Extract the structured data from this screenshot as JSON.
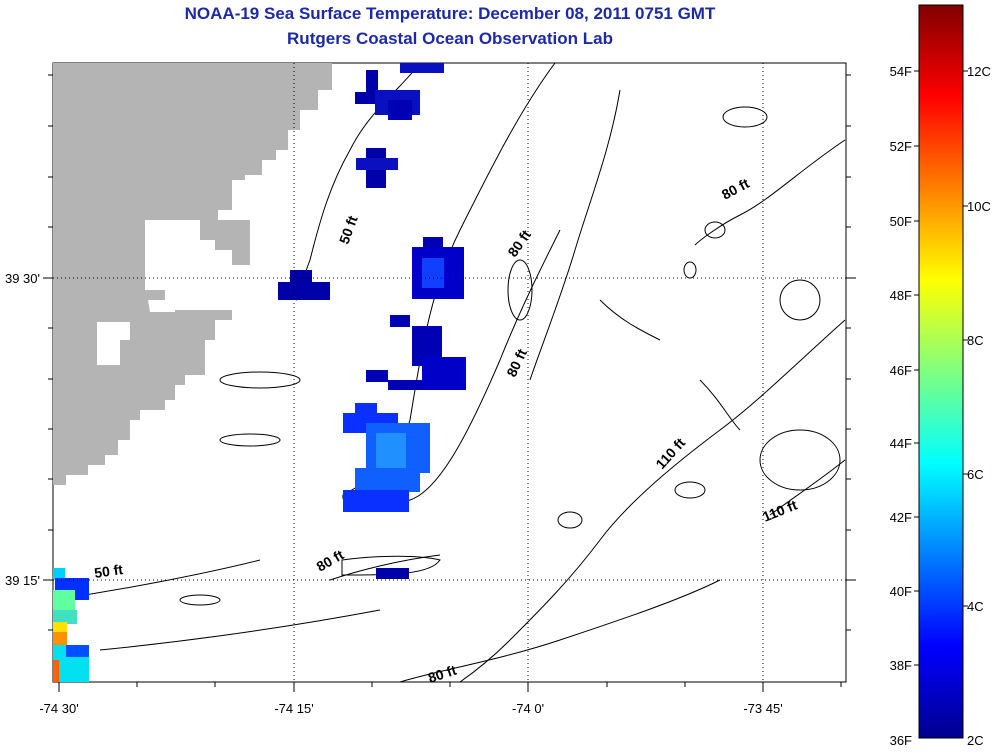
{
  "title": {
    "line1": "NOAA-19 Sea Surface Temperature:  December 08, 2011 0751 GMT",
    "line2": "Rutgers Coastal Ocean Observation Lab"
  },
  "map": {
    "lon_labels": [
      "-74 30'",
      "-74 15'",
      "-74 0'",
      "-73 45'"
    ],
    "lat_labels": [
      "39 30'",
      "39 15'"
    ],
    "contour_labels": [
      "50 ft",
      "50 ft",
      "80 ft",
      "80 ft",
      "80 ft",
      "80 ft",
      "80 ft",
      "110 ft",
      "110 ft"
    ],
    "land_color": "#b4b4b4",
    "contour_color": "#000000"
  },
  "colorbar": {
    "fahrenheit_labels": [
      "54F",
      "52F",
      "50F",
      "48F",
      "46F",
      "44F",
      "42F",
      "40F",
      "38F",
      "36F"
    ],
    "celsius_labels": [
      "12C",
      "10C",
      "8C",
      "6C",
      "4C",
      "2C"
    ],
    "colormap": "jet"
  }
}
